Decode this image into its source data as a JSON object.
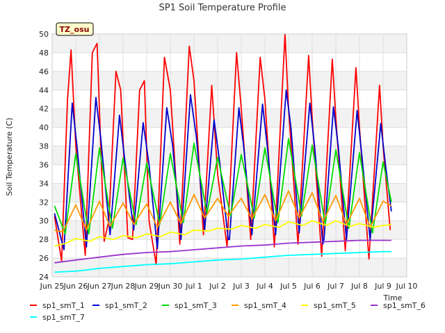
{
  "chart_data": {
    "type": "line",
    "title": "SP1 Soil Temperature Profile",
    "xlabel": "Time",
    "ylabel": "Soil Temperature (C)",
    "ylim": [
      24,
      50
    ],
    "xlim": [
      0,
      15
    ],
    "y_ticks": [
      24,
      26,
      28,
      30,
      32,
      34,
      36,
      38,
      40,
      42,
      44,
      46,
      48,
      50
    ],
    "x_ticks": [
      {
        "value": 0,
        "label": "Jun 25"
      },
      {
        "value": 1,
        "label": "Jun 26"
      },
      {
        "value": 2,
        "label": "Jun 27"
      },
      {
        "value": 3,
        "label": "Jun 28"
      },
      {
        "value": 4,
        "label": "Jun 29"
      },
      {
        "value": 5,
        "label": "Jun 30"
      },
      {
        "value": 6,
        "label": "Jul 1"
      },
      {
        "value": 7,
        "label": "Jul 2"
      },
      {
        "value": 8,
        "label": "Jul 3"
      },
      {
        "value": 9,
        "label": "Jul 4"
      },
      {
        "value": 10,
        "label": "Jul 5"
      },
      {
        "value": 11,
        "label": "Jul 6"
      },
      {
        "value": 12,
        "label": "Jul 7"
      },
      {
        "value": 13,
        "label": "Jul 8"
      },
      {
        "value": 14,
        "label": "Jul 9"
      },
      {
        "value": 15,
        "label": "Jul 10"
      }
    ],
    "grid": true,
    "badge": "TZ_osu",
    "legend_position": "bottom",
    "series": [
      {
        "name": "sp1_smT_1",
        "color": "#ff0000",
        "x": [
          0.1,
          0.4,
          0.65,
          0.8,
          1.0,
          1.4,
          1.7,
          1.9,
          2.2,
          2.4,
          2.7,
          2.9,
          3.2,
          3.4,
          3.7,
          3.9,
          4.1,
          4.4,
          4.75,
          5.0,
          5.4,
          5.8,
          6.0,
          6.4,
          6.75,
          7.0,
          7.4,
          7.8,
          8.0,
          8.4,
          8.8,
          9.0,
          9.4,
          9.85,
          10.0,
          10.4,
          10.85,
          11.0,
          11.4,
          11.85,
          12.0,
          12.4,
          12.85,
          13.0,
          13.4,
          13.85,
          14.0,
          14.3
        ],
        "values": [
          30.5,
          25.7,
          43,
          48.3,
          38,
          26.3,
          48,
          49,
          27.8,
          30,
          46,
          44,
          28.2,
          28,
          44,
          45,
          30,
          25.3,
          47.5,
          44,
          27.5,
          48.7,
          45,
          28.5,
          44.5,
          35,
          27.2,
          48,
          42,
          28,
          47.5,
          43,
          27.2,
          50,
          42,
          27.5,
          47.7,
          41,
          26.2,
          47.3,
          41,
          26.8,
          46.4,
          40,
          25.9,
          44.5,
          38,
          29
        ]
      },
      {
        "name": "sp1_smT_2",
        "color": "#0000cc",
        "x": [
          0.1,
          0.5,
          0.85,
          1.05,
          1.45,
          1.85,
          2.05,
          2.45,
          2.85,
          3.05,
          3.45,
          3.85,
          4.1,
          4.45,
          4.85,
          5.1,
          5.45,
          5.85,
          6.1,
          6.45,
          6.85,
          7.1,
          7.45,
          7.9,
          8.1,
          7.5,
          8.45,
          8.9,
          9.1,
          9.45,
          9.9,
          10.1,
          10.45,
          10.9,
          11.1,
          11.45,
          11.9,
          12.1,
          11.5,
          12.45,
          12.9,
          13.1,
          13.45,
          13.9,
          14.1,
          14.35
        ],
        "values": [
          30.8,
          26.9,
          42.6,
          38,
          27.2,
          43.2,
          39,
          28.5,
          41.3,
          37,
          29,
          40.5,
          36,
          27,
          42.1,
          38,
          28,
          43.5,
          39,
          29,
          40.8,
          36,
          28,
          42.1,
          38,
          28,
          28.5,
          42.5,
          38,
          28.5,
          44,
          40,
          28.7,
          42.6,
          38,
          27.5,
          42.2,
          38,
          28,
          28,
          41.8,
          37,
          28,
          40.4,
          36,
          31
        ]
      },
      {
        "name": "sp1_smT_3",
        "color": "#00dd00",
        "x": [
          0.1,
          0.55,
          1.0,
          1.55,
          2.0,
          2.55,
          3.0,
          3.55,
          4.0,
          4.55,
          5.0,
          5.55,
          6.0,
          6.55,
          7.0,
          7.55,
          8.0,
          8.55,
          9.0,
          9.55,
          10.0,
          10.55,
          11.0,
          11.55,
          12.0,
          12.55,
          13.0,
          13.55,
          14.0,
          14.35
        ],
        "values": [
          31.6,
          28.6,
          37.2,
          28.6,
          37.8,
          29.2,
          36.7,
          29.6,
          36.2,
          29.6,
          37.2,
          29.8,
          38.3,
          30.8,
          36.8,
          30.5,
          37.1,
          30.3,
          37.8,
          29.8,
          38.8,
          30.5,
          38.1,
          29.6,
          37.6,
          29.2,
          37.3,
          28.7,
          36.3,
          32
        ]
      },
      {
        "name": "sp1_smT_4",
        "color": "#ff9900",
        "x": [
          0.1,
          0.45,
          1.0,
          1.45,
          2.0,
          2.45,
          3.0,
          3.45,
          4.0,
          4.45,
          5.0,
          5.45,
          6.0,
          6.45,
          7.0,
          7.45,
          8.0,
          8.45,
          9.0,
          9.45,
          10.0,
          10.45,
          11.0,
          11.45,
          12.0,
          12.45,
          13.0,
          13.45,
          14.0,
          14.35
        ],
        "values": [
          29.0,
          28.8,
          31.7,
          29.0,
          32.1,
          29.4,
          31.9,
          29.6,
          31.8,
          29.3,
          32.0,
          29.7,
          32.8,
          30.3,
          32.4,
          30.5,
          32.4,
          30.2,
          32.8,
          30.0,
          33.2,
          30.3,
          33.0,
          29.9,
          32.7,
          29.6,
          32.4,
          29.3,
          32.1,
          31.6
        ]
      },
      {
        "name": "sp1_smT_5",
        "color": "#ffff00",
        "x": [
          0.1,
          0.6,
          1.0,
          1.6,
          2.0,
          2.6,
          3.0,
          3.6,
          4.0,
          4.6,
          5.0,
          5.6,
          6.0,
          6.6,
          7.0,
          7.6,
          8.0,
          8.6,
          9.0,
          9.6,
          10.0,
          10.6,
          11.0,
          11.6,
          12.0,
          12.6,
          13.0,
          13.6,
          14.0,
          14.35
        ],
        "values": [
          27.3,
          27.6,
          28.1,
          27.8,
          28.3,
          28.0,
          28.4,
          28.2,
          28.6,
          28.3,
          28.8,
          28.5,
          29.0,
          28.9,
          29.2,
          29.1,
          29.5,
          29.2,
          29.6,
          29.3,
          29.9,
          29.5,
          30.0,
          29.5,
          30.0,
          29.4,
          29.7,
          29.3,
          29.5,
          29.6
        ]
      },
      {
        "name": "sp1_smT_6",
        "color": "#9933cc",
        "x": [
          0.1,
          1,
          2,
          3,
          4,
          5,
          6,
          7,
          8,
          9,
          10,
          11,
          12,
          13,
          14,
          14.35
        ],
        "values": [
          25.5,
          25.8,
          26.1,
          26.4,
          26.6,
          26.7,
          26.9,
          27.1,
          27.3,
          27.4,
          27.6,
          27.7,
          27.8,
          27.9,
          27.9,
          27.9
        ]
      },
      {
        "name": "sp1_smT_7",
        "color": "#00ffff",
        "x": [
          0.1,
          1,
          2,
          3,
          4,
          5,
          6,
          7,
          8,
          9,
          10,
          11,
          12,
          13,
          14,
          14.35
        ],
        "values": [
          24.5,
          24.6,
          24.9,
          25.1,
          25.3,
          25.4,
          25.6,
          25.8,
          25.9,
          26.1,
          26.3,
          26.4,
          26.5,
          26.6,
          26.7,
          26.7
        ]
      }
    ]
  }
}
